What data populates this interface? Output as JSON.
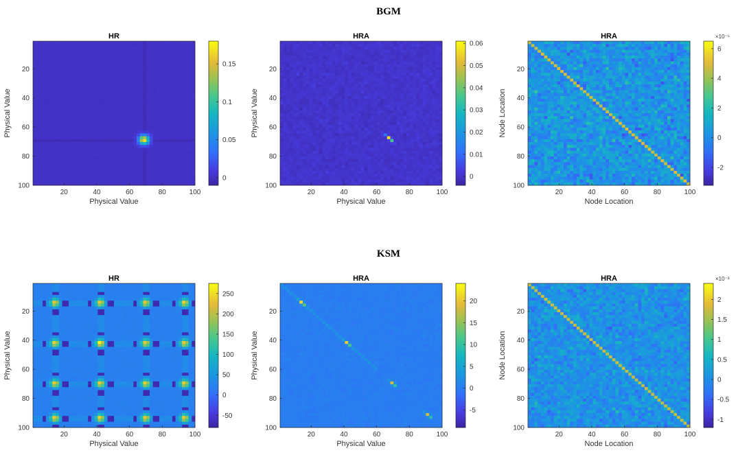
{
  "figure": {
    "sections": [
      {
        "title": "BGM"
      },
      {
        "title": "KSM"
      }
    ]
  },
  "chart_data": [
    {
      "type": "heatmap",
      "section": "BGM",
      "title": "HR",
      "xlabel": "Physical Value",
      "ylabel": "Physical Value",
      "xlim": [
        1,
        100
      ],
      "ylim": [
        1,
        100
      ],
      "xticks": [
        20,
        40,
        60,
        80,
        100
      ],
      "yticks": [
        20,
        40,
        60,
        80,
        100
      ],
      "colormap": "parula",
      "clim": [
        -0.01,
        0.18
      ],
      "colorbar_ticks": [
        0,
        0.05,
        0.1,
        0.15
      ],
      "colorbar_exponent": "",
      "pattern": {
        "kind": "spot",
        "background": 0.0,
        "peak": 0.18,
        "center": [
          69,
          69
        ],
        "line_value": -0.005,
        "spread": 2.2
      }
    },
    {
      "type": "heatmap",
      "section": "BGM",
      "title": "HRA",
      "xlabel": "Physical Value",
      "ylabel": "Physical Value",
      "xlim": [
        1,
        100
      ],
      "ylim": [
        1,
        100
      ],
      "xticks": [
        20,
        40,
        60,
        80,
        100
      ],
      "yticks": [
        20,
        40,
        60,
        80,
        100
      ],
      "colormap": "parula",
      "clim": [
        -0.004,
        0.061
      ],
      "colorbar_ticks": [
        0,
        0.01,
        0.02,
        0.03,
        0.04,
        0.05,
        0.06
      ],
      "colorbar_exponent": "",
      "pattern": {
        "kind": "streak",
        "background": 0.0,
        "peak": 0.061,
        "center": [
          68,
          68
        ],
        "noise": 0.0015
      }
    },
    {
      "type": "heatmap",
      "section": "BGM",
      "title": "HRA",
      "xlabel": "Node Location",
      "ylabel": "Node Location",
      "xlim": [
        1,
        100
      ],
      "ylim": [
        1,
        100
      ],
      "xticks": [
        20,
        40,
        60,
        80,
        100
      ],
      "yticks": [
        20,
        40,
        60,
        80,
        100
      ],
      "colormap": "parula",
      "clim": [
        -3.2,
        6.5
      ],
      "colorbar_ticks": [
        -2,
        0,
        2,
        4,
        6
      ],
      "colorbar_exponent": "×10⁻⁵",
      "pattern": {
        "kind": "diagonal",
        "background": 0.3,
        "diag_value": 4.8,
        "noise": 1.4
      }
    },
    {
      "type": "heatmap",
      "section": "KSM",
      "title": "HR",
      "xlabel": "Physical Value",
      "ylabel": "Physical Value",
      "xlim": [
        1,
        100
      ],
      "ylim": [
        1,
        100
      ],
      "xticks": [
        20,
        40,
        60,
        80,
        100
      ],
      "yticks": [
        20,
        40,
        60,
        80,
        100
      ],
      "colormap": "parula",
      "clim": [
        -80,
        275
      ],
      "colorbar_ticks": [
        -50,
        0,
        50,
        100,
        150,
        200,
        250
      ],
      "colorbar_exponent": "",
      "pattern": {
        "kind": "grid",
        "background": 20,
        "centers": [
          14,
          42,
          70,
          94
        ],
        "peak": 220,
        "line_value": -75,
        "grid_value": 35
      }
    },
    {
      "type": "heatmap",
      "section": "KSM",
      "title": "HRA",
      "xlabel": "Physical Value",
      "ylabel": "Physical Value",
      "xlim": [
        1,
        100
      ],
      "ylim": [
        1,
        100
      ],
      "xticks": [
        20,
        40,
        60,
        80,
        100
      ],
      "yticks": [
        20,
        40,
        60,
        80,
        100
      ],
      "colormap": "parula",
      "clim": [
        -9,
        24
      ],
      "colorbar_ticks": [
        -5,
        0,
        5,
        10,
        15,
        20
      ],
      "colorbar_exponent": "",
      "pattern": {
        "kind": "sparse-grid",
        "background": 0,
        "centers": [
          14,
          42,
          70,
          92
        ],
        "peak": 20,
        "noise": 0.6
      }
    },
    {
      "type": "heatmap",
      "section": "KSM",
      "title": "HRA",
      "xlabel": "Node Location",
      "ylabel": "Node Location",
      "xlim": [
        1,
        100
      ],
      "ylim": [
        1,
        100
      ],
      "xticks": [
        20,
        40,
        60,
        80,
        100
      ],
      "yticks": [
        20,
        40,
        60,
        80,
        100
      ],
      "colormap": "parula",
      "clim": [
        -1.2,
        2.4
      ],
      "colorbar_ticks": [
        -1,
        -0.5,
        0,
        0.5,
        1,
        1.5,
        2
      ],
      "colorbar_exponent": "×10⁻³",
      "pattern": {
        "kind": "diagonal",
        "background": 0.05,
        "diag_value": 1.7,
        "noise": 0.42
      }
    }
  ]
}
